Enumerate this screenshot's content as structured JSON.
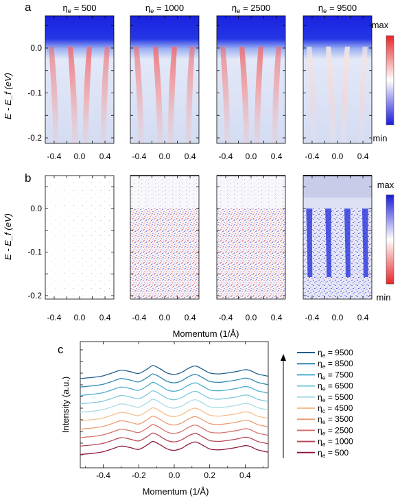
{
  "panel_a": {
    "letter": "a",
    "titles": [
      "η_e = 500",
      "η_e = 1000",
      "η_e = 2500",
      "η_e = 9500"
    ],
    "ylabel": "E - E_f (eV)",
    "yticks": [
      "0.0",
      "-0.1",
      "-0.2"
    ],
    "xticks": [
      "-0.4",
      "0.0",
      "0.4"
    ],
    "colorbar": {
      "max": "max",
      "min": "min",
      "top_color": "#e8252a",
      "bottom_color": "#1a1adb"
    }
  },
  "panel_b": {
    "letter": "b",
    "ylabel": "E - E_f (eV)",
    "yticks": [
      "0.0",
      "-0.1",
      "-0.2"
    ],
    "xticks": [
      "-0.4",
      "0.0",
      "0.4"
    ],
    "xlabel": "Momentum (1/Å)",
    "colorbar": {
      "max": "max",
      "min": "min",
      "top_color": "#1a1adb",
      "bottom_color": "#e8252a"
    }
  },
  "panel_c": {
    "letter": "c",
    "ylabel": "Intensity (a.u.)",
    "xlabel": "Momentum (1/Å)",
    "xticks": [
      "-0.4",
      "-0.2",
      "0.0",
      "0.2",
      "0.4"
    ]
  },
  "chart_data": {
    "type": "line",
    "xlabel": "Momentum (1/Å)",
    "ylabel": "Intensity (a.u.)",
    "xlim": [
      -0.53,
      0.53
    ],
    "x": [
      -0.53,
      -0.45,
      -0.4,
      -0.35,
      -0.3,
      -0.25,
      -0.2,
      -0.15,
      -0.12,
      -0.08,
      -0.04,
      0.0,
      0.04,
      0.08,
      0.12,
      0.16,
      0.2,
      0.25,
      0.3,
      0.35,
      0.4,
      0.43,
      0.47,
      0.53
    ],
    "series": [
      {
        "name": "η_e = 9500",
        "color": "#1f5f8b",
        "offset": 9,
        "values": [
          0.1,
          0.16,
          0.22,
          0.34,
          0.46,
          0.4,
          0.32,
          0.52,
          0.66,
          0.52,
          0.34,
          0.28,
          0.36,
          0.54,
          0.64,
          0.5,
          0.34,
          0.3,
          0.34,
          0.4,
          0.48,
          0.44,
          0.3,
          0.2
        ]
      },
      {
        "name": "η_e = 8500",
        "color": "#2e89b0",
        "offset": 8,
        "values": [
          0.1,
          0.16,
          0.22,
          0.34,
          0.46,
          0.4,
          0.32,
          0.52,
          0.66,
          0.52,
          0.34,
          0.28,
          0.36,
          0.54,
          0.64,
          0.5,
          0.34,
          0.3,
          0.34,
          0.4,
          0.48,
          0.44,
          0.3,
          0.2
        ]
      },
      {
        "name": "η_e = 7500",
        "color": "#4aaecc",
        "offset": 7,
        "values": [
          0.1,
          0.16,
          0.22,
          0.34,
          0.46,
          0.4,
          0.32,
          0.52,
          0.66,
          0.52,
          0.34,
          0.28,
          0.36,
          0.54,
          0.64,
          0.5,
          0.34,
          0.3,
          0.34,
          0.4,
          0.48,
          0.44,
          0.3,
          0.2
        ]
      },
      {
        "name": "η_e = 6500",
        "color": "#7cc8da",
        "offset": 6,
        "values": [
          0.1,
          0.16,
          0.22,
          0.34,
          0.46,
          0.4,
          0.32,
          0.52,
          0.66,
          0.52,
          0.34,
          0.28,
          0.36,
          0.54,
          0.64,
          0.5,
          0.34,
          0.3,
          0.34,
          0.4,
          0.48,
          0.44,
          0.3,
          0.2
        ]
      },
      {
        "name": "η_e = 5500",
        "color": "#a9dbe4",
        "offset": 5,
        "values": [
          0.1,
          0.16,
          0.22,
          0.34,
          0.46,
          0.4,
          0.32,
          0.52,
          0.66,
          0.52,
          0.34,
          0.28,
          0.36,
          0.54,
          0.64,
          0.5,
          0.34,
          0.3,
          0.34,
          0.4,
          0.48,
          0.44,
          0.3,
          0.2
        ]
      },
      {
        "name": "η_c = 4500",
        "color": "#f3c08e",
        "offset": 4,
        "values": [
          0.1,
          0.16,
          0.22,
          0.34,
          0.46,
          0.4,
          0.32,
          0.52,
          0.66,
          0.52,
          0.34,
          0.28,
          0.36,
          0.54,
          0.64,
          0.5,
          0.34,
          0.3,
          0.34,
          0.4,
          0.48,
          0.44,
          0.3,
          0.2
        ]
      },
      {
        "name": "η_e = 3500",
        "color": "#e89d72",
        "offset": 3,
        "values": [
          0.1,
          0.16,
          0.22,
          0.34,
          0.46,
          0.4,
          0.32,
          0.52,
          0.66,
          0.52,
          0.34,
          0.28,
          0.36,
          0.54,
          0.64,
          0.5,
          0.34,
          0.3,
          0.34,
          0.4,
          0.48,
          0.44,
          0.3,
          0.2
        ]
      },
      {
        "name": "η_e = 2500",
        "color": "#d4736a",
        "offset": 2,
        "values": [
          0.1,
          0.16,
          0.22,
          0.34,
          0.46,
          0.4,
          0.32,
          0.52,
          0.66,
          0.52,
          0.34,
          0.28,
          0.36,
          0.54,
          0.64,
          0.5,
          0.34,
          0.3,
          0.34,
          0.4,
          0.48,
          0.44,
          0.3,
          0.2
        ]
      },
      {
        "name": "η_e = 1000",
        "color": "#b84454",
        "offset": 1,
        "values": [
          0.1,
          0.16,
          0.22,
          0.34,
          0.46,
          0.4,
          0.32,
          0.52,
          0.66,
          0.52,
          0.34,
          0.28,
          0.36,
          0.54,
          0.64,
          0.5,
          0.34,
          0.3,
          0.34,
          0.4,
          0.48,
          0.44,
          0.3,
          0.2
        ]
      },
      {
        "name": "η_e = 500",
        "color": "#8e1a3a",
        "offset": 0,
        "values": [
          0.1,
          0.16,
          0.22,
          0.34,
          0.46,
          0.4,
          0.32,
          0.52,
          0.66,
          0.52,
          0.34,
          0.28,
          0.36,
          0.54,
          0.64,
          0.5,
          0.34,
          0.3,
          0.34,
          0.4,
          0.48,
          0.44,
          0.3,
          0.2
        ]
      }
    ]
  }
}
